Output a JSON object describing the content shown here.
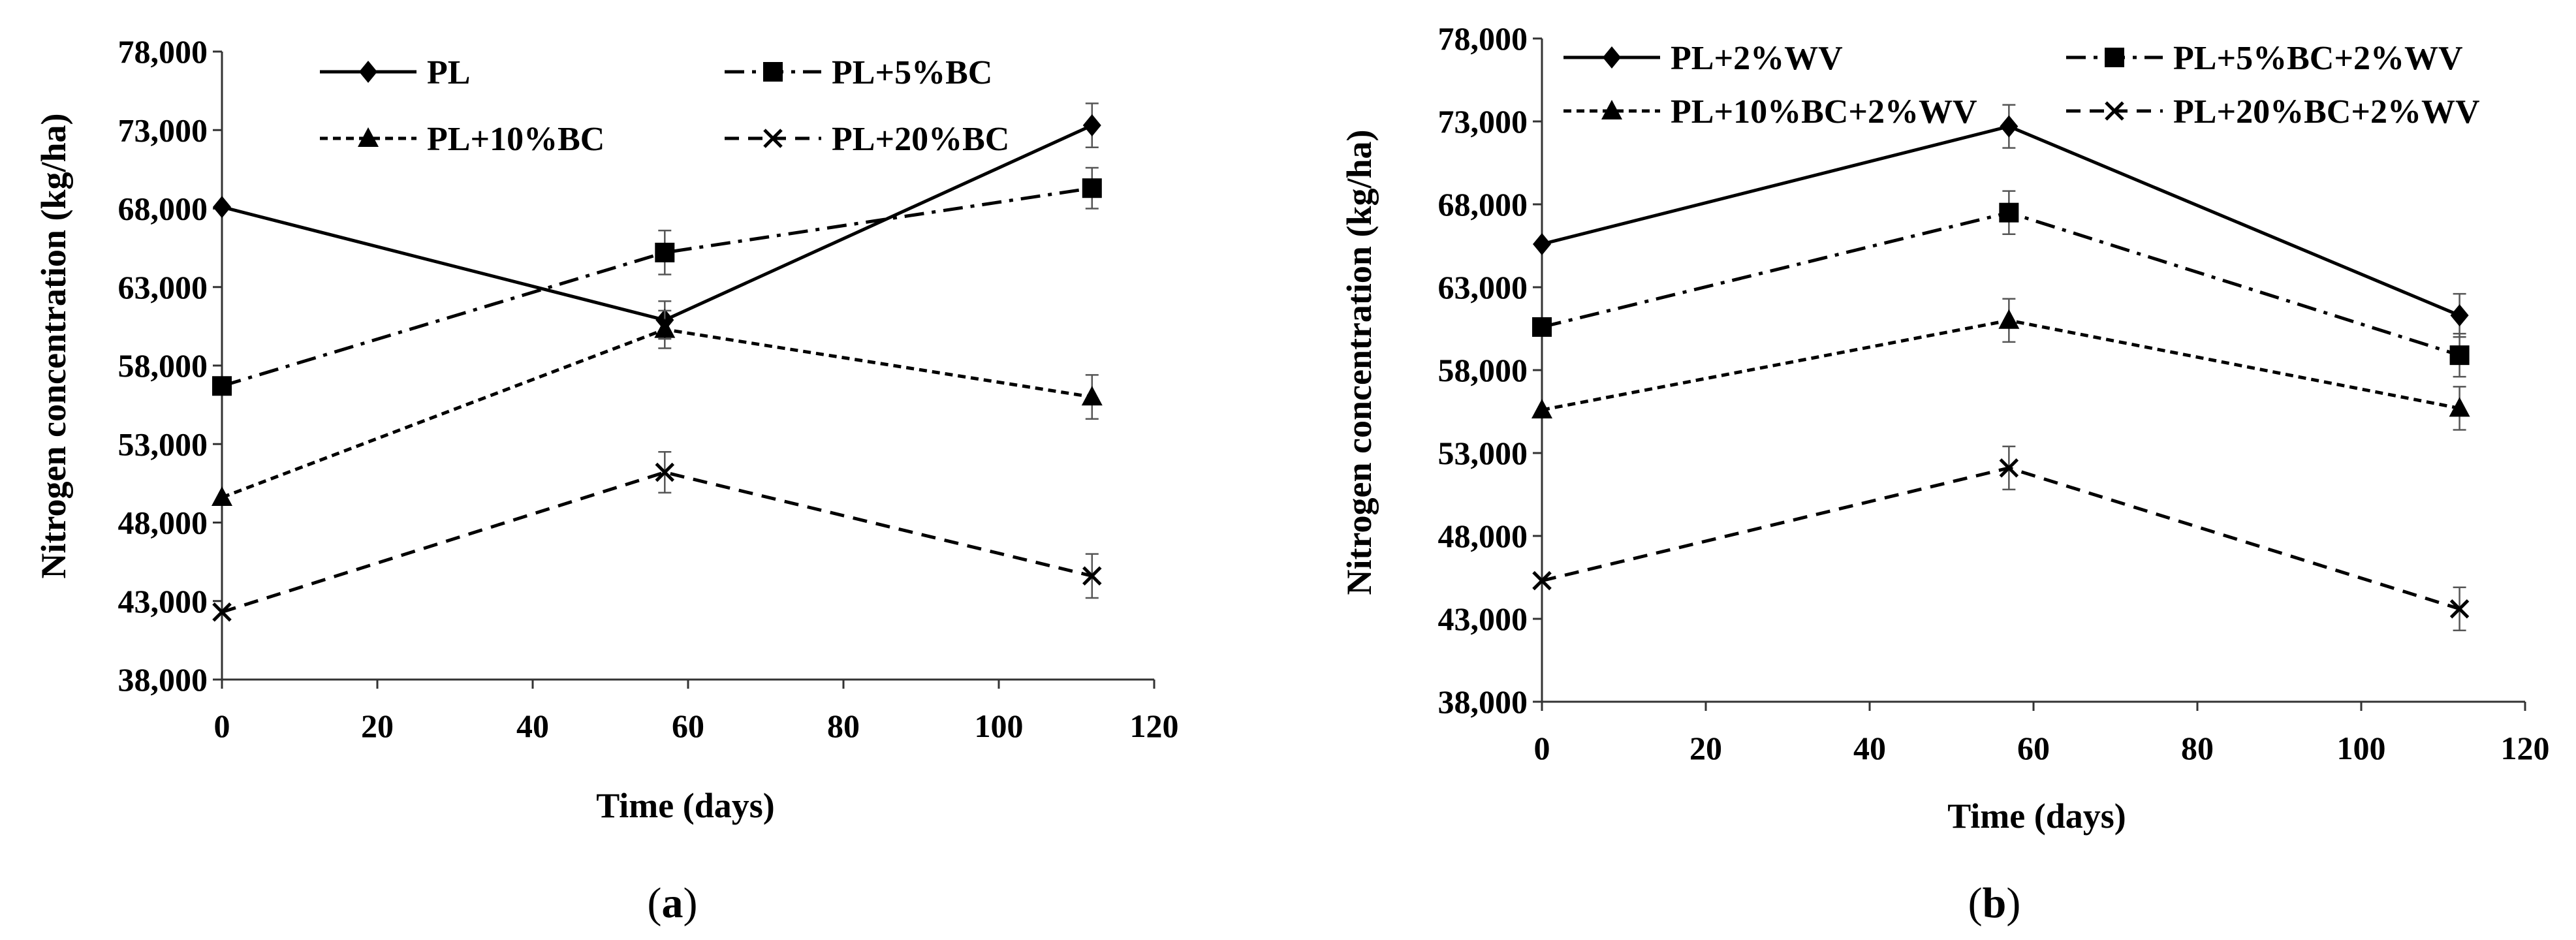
{
  "chart_data": [
    {
      "type": "line",
      "panel_label": "a",
      "xlabel": "Time (days)",
      "ylabel": "Nitrogen  concentration  (kg/ha)",
      "xlim": [
        0,
        120
      ],
      "ylim": [
        38000,
        78000
      ],
      "x_ticks": [
        "0",
        "20",
        "40",
        "60",
        "80",
        "100",
        "120"
      ],
      "y_ticks": [
        "38,000",
        "43,000",
        "48,000",
        "53,000",
        "58,000",
        "63,000",
        "68,000",
        "73,000",
        "78,000"
      ],
      "grid": false,
      "legend_position": "top",
      "x": [
        0,
        57,
        112
      ],
      "series": [
        {
          "name": "PL",
          "values": [
            68100,
            60900,
            73300
          ],
          "errors": [
            0,
            1200,
            1400
          ],
          "marker": "diamond",
          "dash": "solid"
        },
        {
          "name": "PL+5%BC",
          "values": [
            56700,
            65200,
            69300
          ],
          "errors": [
            0,
            1400,
            1300
          ],
          "marker": "square",
          "dash": "dashdot"
        },
        {
          "name": "PL+10%BC",
          "values": [
            49600,
            60300,
            56000
          ],
          "errors": [
            0,
            1200,
            1400
          ],
          "marker": "triangle",
          "dash": "dotted"
        },
        {
          "name": "PL+20%BC",
          "values": [
            42300,
            51200,
            44600
          ],
          "errors": [
            0,
            1300,
            1400
          ],
          "marker": "x",
          "dash": "dashed"
        }
      ]
    },
    {
      "type": "line",
      "panel_label": "b",
      "xlabel": "Time (days)",
      "ylabel": "Nitrogen  concentration  (kg/ha)",
      "xlim": [
        0,
        120
      ],
      "ylim": [
        38000,
        78000
      ],
      "x_ticks": [
        "0",
        "20",
        "40",
        "60",
        "80",
        "100",
        "120"
      ],
      "y_ticks": [
        "38,000",
        "43,000",
        "48,000",
        "53,000",
        "58,000",
        "63,000",
        "68,000",
        "73,000",
        "78,000"
      ],
      "grid": false,
      "legend_position": "top",
      "x": [
        0,
        57,
        112
      ],
      "series": [
        {
          "name": "PL+2%WV",
          "values": [
            65600,
            72700,
            61300
          ],
          "errors": [
            0,
            1300,
            1300
          ],
          "marker": "diamond",
          "dash": "solid"
        },
        {
          "name": "PL+5%BC+2%WV",
          "values": [
            60600,
            67500,
            58900
          ],
          "errors": [
            0,
            1300,
            1300
          ],
          "marker": "square",
          "dash": "dashdot"
        },
        {
          "name": "PL+10%BC+2%WV",
          "values": [
            55600,
            61000,
            55700
          ],
          "errors": [
            0,
            1300,
            1300
          ],
          "marker": "triangle",
          "dash": "dotted"
        },
        {
          "name": "PL+20%BC+2%WV",
          "values": [
            45300,
            52100,
            43600
          ],
          "errors": [
            0,
            1300,
            1300
          ],
          "marker": "x",
          "dash": "dashed"
        }
      ]
    }
  ]
}
